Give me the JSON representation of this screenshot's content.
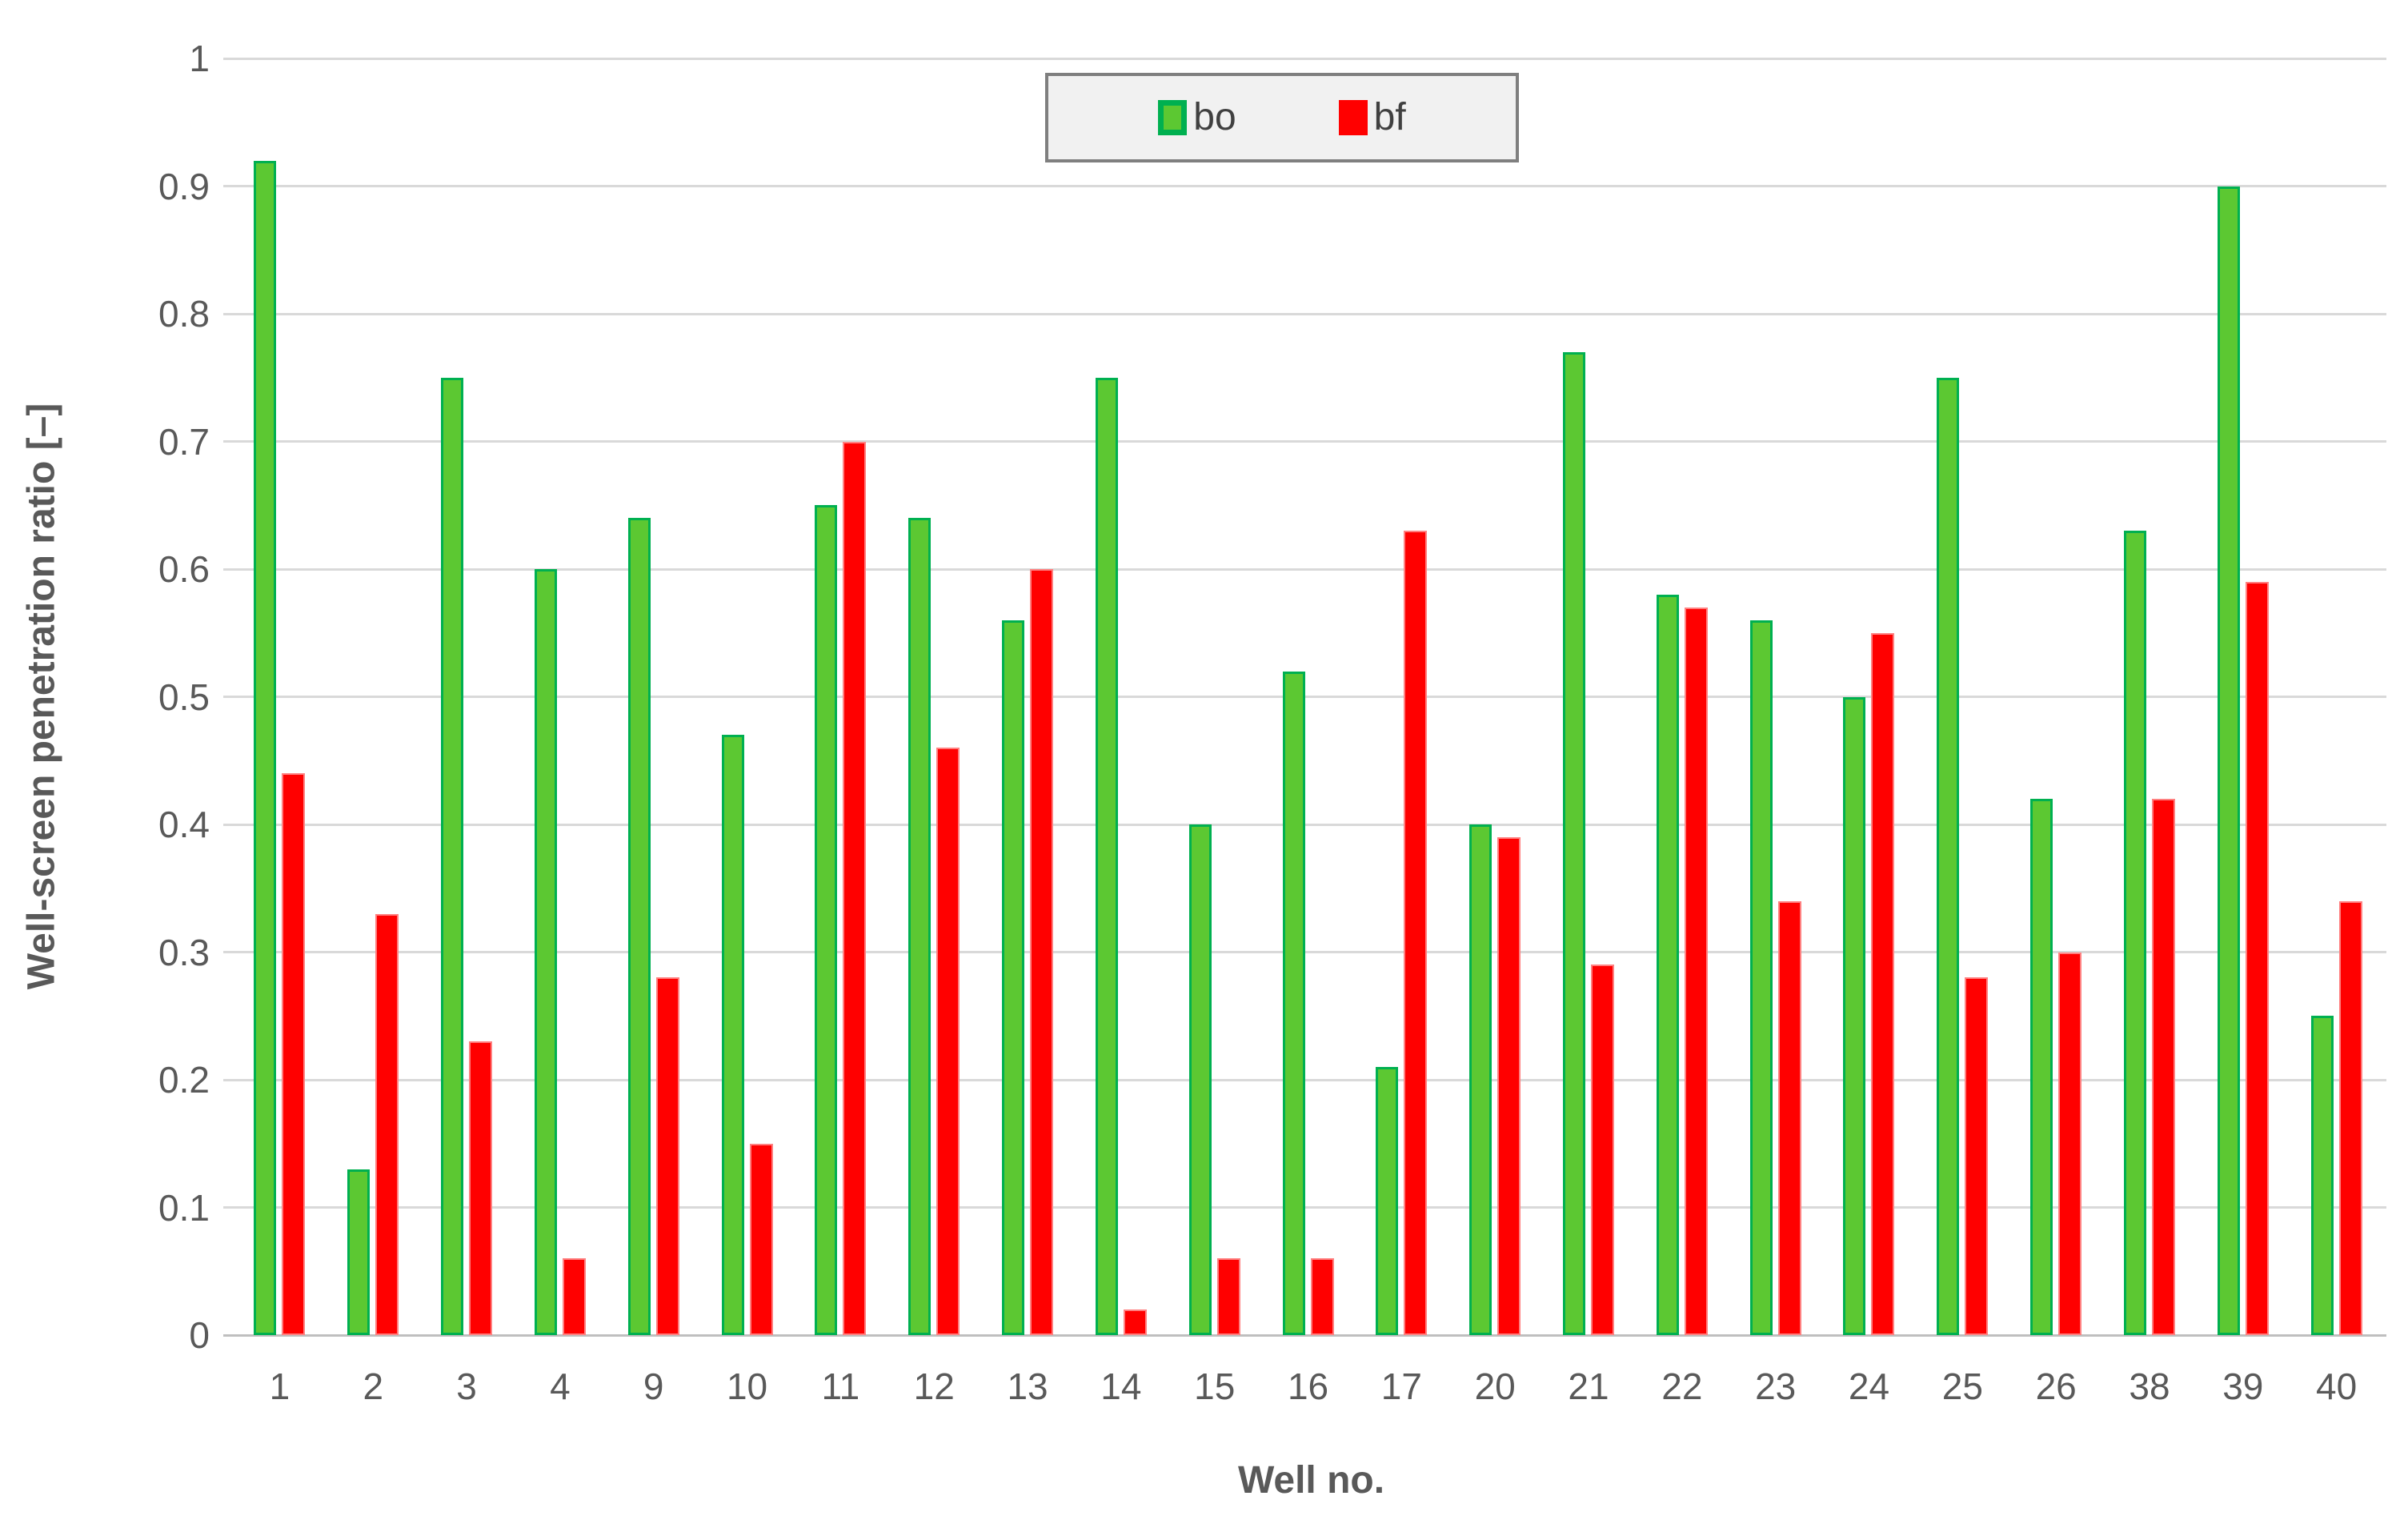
{
  "chart_data": {
    "type": "bar",
    "title": "",
    "xlabel": "Well no.",
    "ylabel": "Well-screen penetration ratio [–]",
    "categories": [
      "1",
      "2",
      "3",
      "4",
      "9",
      "10",
      "11",
      "12",
      "13",
      "14",
      "15",
      "16",
      "17",
      "20",
      "21",
      "22",
      "23",
      "24",
      "25",
      "26",
      "38",
      "39",
      "40"
    ],
    "series": [
      {
        "name": "bo",
        "fill_color": "#5CC832",
        "border_color": "#00B050",
        "values": [
          0.92,
          0.13,
          0.75,
          0.6,
          0.64,
          0.47,
          0.65,
          0.64,
          0.56,
          0.75,
          0.4,
          0.52,
          0.21,
          0.4,
          0.77,
          0.58,
          0.56,
          0.5,
          0.75,
          0.42,
          0.63,
          0.9,
          0.25
        ]
      },
      {
        "name": "bf",
        "fill_color": "#FF0000",
        "border_color": "#FF8080",
        "values": [
          0.44,
          0.33,
          0.23,
          0.06,
          0.28,
          0.15,
          0.7,
          0.46,
          0.6,
          0.02,
          0.06,
          0.06,
          0.63,
          0.39,
          0.29,
          0.57,
          0.34,
          0.55,
          0.28,
          0.3,
          0.42,
          0.59,
          0.34
        ]
      }
    ],
    "ylim": [
      0,
      1
    ],
    "yticks": [
      "0",
      "0.1",
      "0.2",
      "0.3",
      "0.4",
      "0.5",
      "0.6",
      "0.7",
      "0.8",
      "0.9",
      "1"
    ],
    "grid": "horizontal",
    "legend_position": "top-center"
  },
  "colors": {
    "gridline": "#D9D9D9",
    "baseline": "#BFBFBF",
    "tick_text": "#595959",
    "axis_title_text": "#595959",
    "legend_background": "#F1F1F1",
    "legend_border": "#7F7F7F",
    "legend_text": "#404040"
  }
}
